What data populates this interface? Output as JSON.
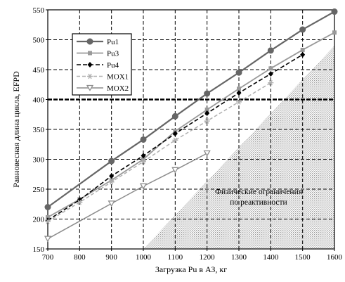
{
  "chart_data": {
    "type": "line",
    "xlabel": "Загрузка Pu в АЗ, кг",
    "ylabel": "Равновесная длина цикла, EFPD",
    "xlim": [
      700,
      1600
    ],
    "ylim": [
      150,
      550
    ],
    "xticks": [
      700,
      800,
      900,
      1000,
      1100,
      1200,
      1300,
      1400,
      1500,
      1600
    ],
    "yticks": [
      150,
      200,
      250,
      300,
      350,
      400,
      450,
      500,
      550
    ],
    "grid": true,
    "legend_position": "top-left",
    "annotation": [
      "Физические ограничения",
      "по реактивности"
    ],
    "series": [
      {
        "name": "Pu1",
        "color": "#666666",
        "dash": "",
        "marker": "circle",
        "x": [
          700,
          900,
          1000,
          1100,
          1200,
          1300,
          1400,
          1500,
          1600
        ],
        "y": [
          220,
          297,
          333,
          372,
          410,
          445,
          482,
          517,
          547
        ]
      },
      {
        "name": "Pu3",
        "color": "#9a9a9a",
        "dash": "",
        "marker": "square",
        "x": [
          700,
          800,
          900,
          1000,
          1100,
          1200,
          1300,
          1400,
          1500,
          1600
        ],
        "y": [
          203,
          233,
          265,
          300,
          347,
          383,
          418,
          452,
          483,
          512
        ]
      },
      {
        "name": "Pu4",
        "color": "#000000",
        "dash": "6,3",
        "marker": "diamond",
        "x": [
          700,
          800,
          900,
          1000,
          1100,
          1200,
          1300,
          1400,
          1500
        ],
        "y": [
          198,
          232,
          272,
          306,
          343,
          377,
          411,
          443,
          475
        ]
      },
      {
        "name": "MOX1",
        "color": "#b0b0b0",
        "dash": "5,3",
        "marker": "star",
        "x": [
          700,
          800,
          900,
          1000,
          1100,
          1200,
          1300,
          1400
        ],
        "y": [
          196,
          228,
          262,
          296,
          332,
          364,
          396,
          428
        ]
      },
      {
        "name": "MOX2",
        "color": "#8c8c8c",
        "dash": "",
        "marker": "triangle",
        "x": [
          700,
          900,
          1000,
          1100,
          1200
        ],
        "y": [
          167,
          226,
          255,
          282,
          310
        ]
      }
    ]
  }
}
